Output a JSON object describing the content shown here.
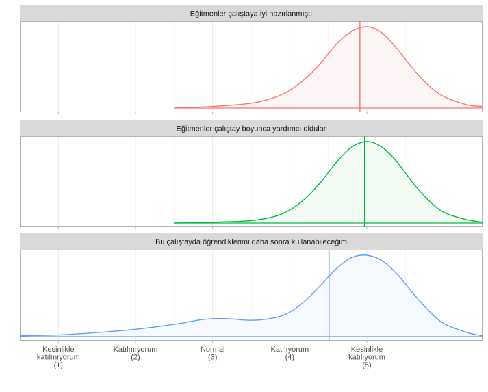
{
  "chart_data": {
    "type": "area",
    "x_axis": {
      "range": [
        0.5,
        6.5
      ],
      "ticks": [
        {
          "value": 1,
          "lines": [
            "Kesinlikle",
            "katılmıyorum",
            "(1)"
          ]
        },
        {
          "value": 2,
          "lines": [
            "Katılmıyorum",
            "(2)"
          ]
        },
        {
          "value": 3,
          "lines": [
            "Normal",
            "(3)"
          ]
        },
        {
          "value": 4,
          "lines": [
            "Katılıyorum",
            "(4)"
          ]
        },
        {
          "value": 5,
          "lines": [
            "Kesinlikle",
            "katılıyorum",
            "(5)"
          ]
        }
      ],
      "minor_gridlines": [
        1.5,
        2.5,
        3.5,
        4.5,
        5.5,
        6
      ]
    },
    "grid": true,
    "y_axis": {
      "labels": "none"
    },
    "panels": [
      {
        "title": "Eğitmenler çalıştaya iyi hazırlanmıştı",
        "color": "#F8766D",
        "fill": "#FEF6F6",
        "mean": 4.91,
        "ymax": 1.08,
        "density": [
          [
            2.5,
            0.0
          ],
          [
            3.0,
            0.02
          ],
          [
            3.5,
            0.06
          ],
          [
            3.8,
            0.13
          ],
          [
            4.0,
            0.22
          ],
          [
            4.2,
            0.36
          ],
          [
            4.4,
            0.55
          ],
          [
            4.6,
            0.78
          ],
          [
            4.8,
            0.94
          ],
          [
            5.0,
            1.0
          ],
          [
            5.2,
            0.92
          ],
          [
            5.4,
            0.72
          ],
          [
            5.6,
            0.48
          ],
          [
            5.8,
            0.28
          ],
          [
            6.0,
            0.14
          ],
          [
            6.3,
            0.04
          ],
          [
            6.5,
            0.02
          ]
        ]
      },
      {
        "title": "Eğitmenler çalıştay boyunca yardımcı oldular",
        "color": "#00BA38",
        "fill": "#F2FBF4",
        "mean": 4.97,
        "ymax": 1.08,
        "density": [
          [
            2.5,
            0.0
          ],
          [
            3.0,
            0.01
          ],
          [
            3.5,
            0.03
          ],
          [
            3.8,
            0.08
          ],
          [
            4.0,
            0.16
          ],
          [
            4.2,
            0.3
          ],
          [
            4.4,
            0.5
          ],
          [
            4.6,
            0.74
          ],
          [
            4.8,
            0.93
          ],
          [
            5.0,
            1.0
          ],
          [
            5.2,
            0.93
          ],
          [
            5.4,
            0.74
          ],
          [
            5.6,
            0.49
          ],
          [
            5.8,
            0.28
          ],
          [
            6.0,
            0.13
          ],
          [
            6.3,
            0.04
          ],
          [
            6.5,
            0.01
          ]
        ]
      },
      {
        "title": "Bu çalıştayda öğrendiklerimi daha sonra kullanabileceğim",
        "color": "#619CFF",
        "fill": "#F6F9FF",
        "mean": 4.51,
        "ymax": 1.08,
        "density": [
          [
            0.5,
            0.01
          ],
          [
            1.0,
            0.02
          ],
          [
            1.5,
            0.05
          ],
          [
            2.0,
            0.09
          ],
          [
            2.5,
            0.15
          ],
          [
            2.8,
            0.2
          ],
          [
            3.0,
            0.22
          ],
          [
            3.2,
            0.22
          ],
          [
            3.5,
            0.2
          ],
          [
            3.8,
            0.23
          ],
          [
            4.0,
            0.3
          ],
          [
            4.2,
            0.44
          ],
          [
            4.4,
            0.63
          ],
          [
            4.6,
            0.83
          ],
          [
            4.8,
            0.97
          ],
          [
            5.0,
            1.0
          ],
          [
            5.2,
            0.93
          ],
          [
            5.4,
            0.76
          ],
          [
            5.6,
            0.53
          ],
          [
            5.8,
            0.32
          ],
          [
            6.0,
            0.16
          ],
          [
            6.3,
            0.05
          ],
          [
            6.5,
            0.01
          ]
        ]
      }
    ]
  }
}
